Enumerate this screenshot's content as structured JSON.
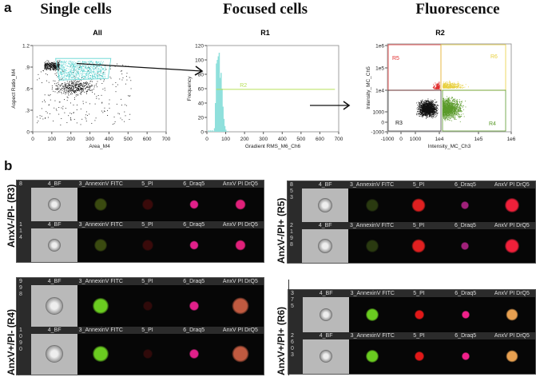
{
  "panel_a": {
    "label": "a",
    "sections": [
      {
        "title": "Single cells",
        "plot_title": "All"
      },
      {
        "title": "Focused cells",
        "plot_title": "R1"
      },
      {
        "title": "Fluorescence",
        "plot_title": "R2"
      }
    ]
  },
  "chart_data": [
    {
      "type": "scatter",
      "title": "All",
      "xlabel": "Area_M4",
      "ylabel": "Aspect Ratio_M4",
      "xlim": [
        0,
        700
      ],
      "ylim": [
        0,
        1.2
      ],
      "xticks": [
        "0",
        "100",
        "200",
        "300",
        "400",
        "500",
        "600",
        "700"
      ],
      "yticks": [
        "0",
        "0.3",
        "0.6",
        "0.9",
        "1.2"
      ],
      "ytick_labels": [
        "0",
        ".3",
        ".6",
        ".9",
        "1.2"
      ],
      "gate": {
        "name": "R1",
        "polygon_x": [
          120,
          410,
          395,
          140
        ],
        "polygon_y": [
          1.02,
          1.02,
          0.74,
          0.72
        ],
        "color": "#5fd3d0"
      },
      "colors": {
        "points": "#111111",
        "gated": "#5fd3d0"
      }
    },
    {
      "type": "bar",
      "title": "R1",
      "xlabel": "Gradient RMS_M6_Ch6",
      "ylabel": "Frequency",
      "xlim": [
        0,
        700
      ],
      "ylim": [
        0,
        120
      ],
      "xticks": [
        "0",
        "100",
        "200",
        "300",
        "400",
        "500",
        "600",
        "700"
      ],
      "yticks": [
        "0",
        "20",
        "40",
        "60",
        "80",
        "100",
        "120"
      ],
      "bin_centers": [
        10,
        20,
        30,
        40,
        45,
        50,
        55,
        60,
        65,
        70,
        75,
        80,
        85,
        90,
        95,
        100,
        110
      ],
      "values": [
        2,
        2,
        2,
        5,
        40,
        95,
        100,
        105,
        110,
        75,
        82,
        60,
        35,
        18,
        8,
        3,
        1
      ],
      "gate": {
        "name": "R2",
        "x_range": [
          50,
          680
        ],
        "y": 59,
        "color": "#b8e05a"
      },
      "colors": {
        "bars": "#8fe0dc"
      }
    },
    {
      "type": "scatter",
      "title": "R2",
      "xlabel": "Intensity_MC_Ch3",
      "ylabel": "Intensity_MC_Ch5",
      "scale": "biexponential",
      "xticks": [
        "-1000",
        "0",
        "1000",
        "1e4",
        "1e5",
        "1e6"
      ],
      "yticks": [
        "-1000",
        "0",
        "1000",
        "1e4",
        "1e5",
        "1e6"
      ],
      "gates": [
        {
          "name": "R3",
          "color": "#111111",
          "quadrant": "bottom-left"
        },
        {
          "name": "R4",
          "color": "#5a9a2a",
          "quadrant": "bottom-right"
        },
        {
          "name": "R5",
          "color": "#e03030",
          "quadrant": "top-left"
        },
        {
          "name": "R6",
          "color": "#e8d040",
          "quadrant": "top-right"
        }
      ]
    }
  ],
  "panel_b": {
    "label": "b",
    "channels": [
      "4_BF",
      "3_AnnexinV FITC",
      "5_PI",
      "6_Draq5",
      "AnxV PI DrQ5"
    ],
    "groups": [
      {
        "label": "AnxV-/PI- (R3)",
        "events": [
          "8",
          "114"
        ]
      },
      {
        "label": "AnxV-/PI+ (R5)",
        "events": [
          "853",
          "2198"
        ]
      },
      {
        "label": "AnxV+/PI- (R4)",
        "events": [
          "998",
          "1090"
        ]
      },
      {
        "label": "AnxV+/PI+ (R6)",
        "events": [
          "375",
          "2603"
        ]
      }
    ]
  }
}
